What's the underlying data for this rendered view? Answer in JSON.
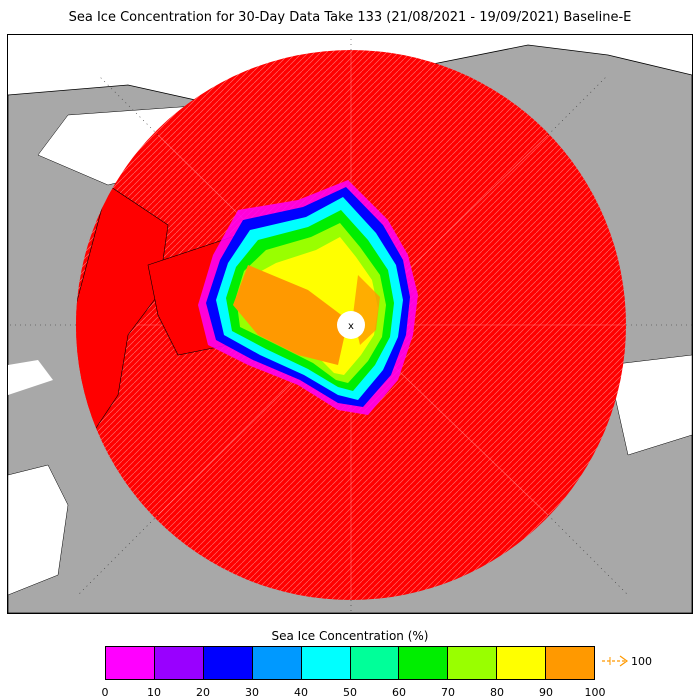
{
  "title": "Sea Ice Concentration for 30-Day Data Take 133 (21/08/2021 - 19/09/2021) Baseline-E",
  "legend": {
    "title": "Sea Ice Concentration (%)",
    "ticks": [
      "0",
      "10",
      "20",
      "30",
      "40",
      "50",
      "60",
      "70",
      "80",
      "90",
      "100"
    ],
    "colors": [
      "#ff00ff",
      "#9900ff",
      "#0000ff",
      "#0099ff",
      "#00ffff",
      "#00ff99",
      "#00ee00",
      "#99ff00",
      "#ffff00",
      "#ff9900"
    ],
    "overflow_label": "100",
    "overflow_color": "#ff9900"
  },
  "map": {
    "land_color": "#a8a8a8",
    "ocean_color": "#ff0000",
    "pole_hole_color": "#ffffff",
    "pole_marker": "x"
  }
}
